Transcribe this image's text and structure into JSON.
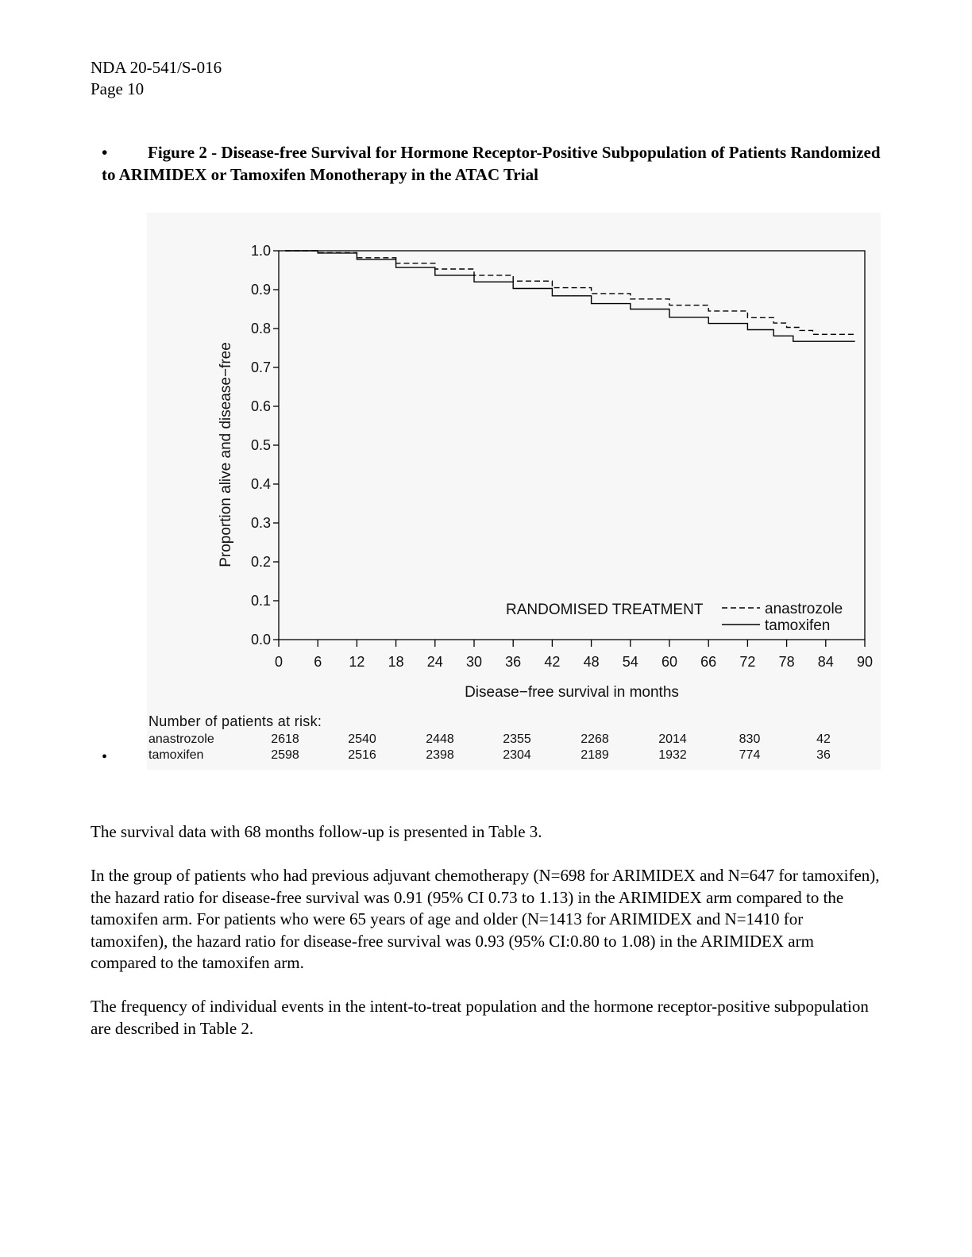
{
  "header": {
    "line1": "NDA 20-541/S-016",
    "line2": "Page 10"
  },
  "caption": {
    "bullet": "•",
    "text": "Figure 2 - Disease-free Survival for Hormone Receptor-Positive Subpopulation of Patients Randomized to ARIMIDEX or Tamoxifen Monotherapy in the ATAC Trial"
  },
  "side_bullet": "•",
  "chart_data": {
    "type": "line",
    "title": "",
    "xlabel": "Disease−free survival in months",
    "ylabel": "Proportion alive and disease−free",
    "xlim": [
      0,
      90
    ],
    "ylim": [
      0.0,
      1.0
    ],
    "x_ticks": [
      0,
      6,
      12,
      18,
      24,
      30,
      36,
      42,
      48,
      54,
      60,
      66,
      72,
      78,
      84,
      90
    ],
    "y_ticks": [
      "0.0",
      "0.1",
      "0.2",
      "0.3",
      "0.4",
      "0.5",
      "0.6",
      "0.7",
      "0.8",
      "0.9",
      "1.0"
    ],
    "grid": false,
    "legend_title": "RANDOMISED TREATMENT",
    "legend_position": "bottom-right",
    "series": [
      {
        "name": "anastrozole",
        "style": "dashed",
        "x": [
          1,
          6,
          12,
          18,
          24,
          30,
          36,
          42,
          48,
          54,
          60,
          66,
          72,
          76,
          78,
          80,
          82,
          88.5
        ],
        "y": [
          1.0,
          0.995,
          0.982,
          0.968,
          0.953,
          0.937,
          0.922,
          0.905,
          0.89,
          0.876,
          0.86,
          0.845,
          0.828,
          0.814,
          0.803,
          0.795,
          0.785,
          0.785
        ]
      },
      {
        "name": "tamoxifen",
        "style": "solid",
        "x": [
          1,
          6,
          12,
          18,
          24,
          30,
          36,
          42,
          48,
          54,
          60,
          66,
          72,
          76,
          79,
          88.5
        ],
        "y": [
          1.0,
          0.994,
          0.978,
          0.957,
          0.937,
          0.92,
          0.903,
          0.884,
          0.864,
          0.85,
          0.829,
          0.813,
          0.797,
          0.781,
          0.767,
          0.767
        ]
      }
    ]
  },
  "risk_table": {
    "title": "Number of patients at risk:",
    "rows": [
      {
        "label": "anastrozole",
        "values": [
          "2618",
          "2540",
          "2448",
          "2355",
          "2268",
          "2014",
          "830",
          "42"
        ]
      },
      {
        "label": "tamoxifen",
        "values": [
          "2598",
          "2516",
          "2398",
          "2304",
          "2189",
          "1932",
          "774",
          "36"
        ]
      }
    ]
  },
  "paragraphs": {
    "p1": "The survival data with 68 months follow-up is presented in Table 3.",
    "p2": "In the group of patients who had previous adjuvant chemotherapy (N=698 for ARIMIDEX and N=647 for tamoxifen), the hazard ratio for disease-free survival was 0.91 (95% CI 0.73 to 1.13) in the ARIMIDEX arm compared to the tamoxifen arm.  For patients who were 65 years of age and older (N=1413 for ARIMIDEX and N=1410 for tamoxifen), the hazard ratio for disease-free survival was 0.93 (95% CI:0.80 to 1.08) in the ARIMIDEX arm compared to the tamoxifen arm.",
    "p3": "The frequency of individual events in the intent-to-treat population and the hormone receptor-positive subpopulation are described in Table 2."
  }
}
